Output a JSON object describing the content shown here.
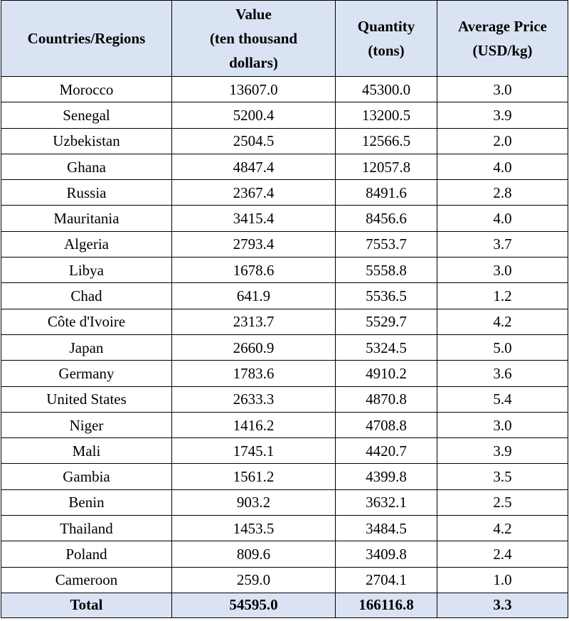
{
  "table": {
    "headers": [
      [
        "Countries/Regions"
      ],
      [
        "Value",
        "(ten thousand",
        "dollars)"
      ],
      [
        "Quantity",
        "(tons)"
      ],
      [
        "Average Price",
        "(USD/kg)"
      ]
    ],
    "rows": [
      [
        "Morocco",
        "13607.0",
        "45300.0",
        "3.0"
      ],
      [
        "Senegal",
        "5200.4",
        "13200.5",
        "3.9"
      ],
      [
        "Uzbekistan",
        "2504.5",
        "12566.5",
        "2.0"
      ],
      [
        "Ghana",
        "4847.4",
        "12057.8",
        "4.0"
      ],
      [
        "Russia",
        "2367.4",
        "8491.6",
        "2.8"
      ],
      [
        "Mauritania",
        "3415.4",
        "8456.6",
        "4.0"
      ],
      [
        "Algeria",
        "2793.4",
        "7553.7",
        "3.7"
      ],
      [
        "Libya",
        "1678.6",
        "5558.8",
        "3.0"
      ],
      [
        "Chad",
        "641.9",
        "5536.5",
        "1.2"
      ],
      [
        "Côte d'Ivoire",
        "2313.7",
        "5529.7",
        "4.2"
      ],
      [
        "Japan",
        "2660.9",
        "5324.5",
        "5.0"
      ],
      [
        "Germany",
        "1783.6",
        "4910.2",
        "3.6"
      ],
      [
        "United States",
        "2633.3",
        "4870.8",
        "5.4"
      ],
      [
        "Niger",
        "1416.2",
        "4708.8",
        "3.0"
      ],
      [
        "Mali",
        "1745.1",
        "4420.7",
        "3.9"
      ],
      [
        "Gambia",
        "1561.2",
        "4399.8",
        "3.5"
      ],
      [
        "Benin",
        "903.2",
        "3632.1",
        "2.5"
      ],
      [
        "Thailand",
        "1453.5",
        "3484.5",
        "4.2"
      ],
      [
        "Poland",
        "809.6",
        "3409.8",
        "2.4"
      ],
      [
        "Cameroon",
        "259.0",
        "2704.1",
        "1.0"
      ]
    ],
    "total": [
      "Total",
      "54595.0",
      "166116.8",
      "3.3"
    ]
  },
  "colors": {
    "header_bg": "#dae3f3",
    "border": "#000000",
    "text": "#000000"
  }
}
